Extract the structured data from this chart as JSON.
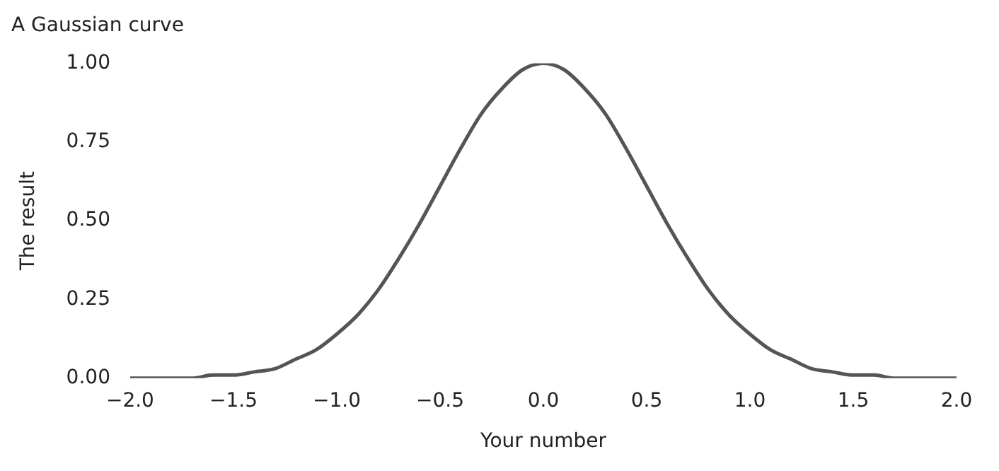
{
  "chart_data": {
    "type": "line",
    "title": "A Gaussian curve",
    "xlabel": "Your number",
    "ylabel": "The result",
    "x": [
      -2.0,
      -1.9,
      -1.8,
      -1.7,
      -1.6,
      -1.5,
      -1.4,
      -1.3,
      -1.2,
      -1.1,
      -1.0,
      -0.9,
      -0.8,
      -0.7,
      -0.6,
      -0.5,
      -0.4,
      -0.3,
      -0.2,
      -0.1,
      0.0,
      0.1,
      0.2,
      0.3,
      0.4,
      0.5,
      0.6,
      0.7,
      0.8,
      0.9,
      1.0,
      1.1,
      1.2,
      1.3,
      1.4,
      1.5,
      1.6,
      1.7,
      1.8,
      1.9,
      2.0
    ],
    "series": [
      {
        "color": "#555555",
        "values": [
          0,
          0,
          0,
          0,
          0.01,
          0.01,
          0.02,
          0.03,
          0.06,
          0.09,
          0.14,
          0.2,
          0.28,
          0.38,
          0.49,
          0.61,
          0.73,
          0.84,
          0.92,
          0.98,
          1,
          0.98,
          0.92,
          0.84,
          0.73,
          0.61,
          0.49,
          0.38,
          0.28,
          0.2,
          0.14,
          0.09,
          0.06,
          0.03,
          0.02,
          0.01,
          0.01,
          0,
          0,
          0,
          0
        ]
      }
    ],
    "xlim": [
      -2.0,
      2.0
    ],
    "xticks": [
      {
        "value": -2,
        "label": "−2.0"
      },
      {
        "value": -1.5,
        "label": "−1.5"
      },
      {
        "value": -1,
        "label": "−1.0"
      },
      {
        "value": -0.5,
        "label": "−0.5"
      },
      {
        "value": 0,
        "label": "0.0"
      },
      {
        "value": 0.5,
        "label": "0.5"
      },
      {
        "value": 1,
        "label": "1.0"
      },
      {
        "value": 1.5,
        "label": "1.5"
      },
      {
        "value": 2,
        "label": "2.0"
      }
    ],
    "ylim": [
      0,
      1.0
    ],
    "yticks": [
      {
        "value": 0,
        "label": "0.00"
      },
      {
        "value": 0.25,
        "label": "0.25"
      },
      {
        "value": 0.5,
        "label": "0.50"
      },
      {
        "value": 0.75,
        "label": "0.75"
      },
      {
        "value": 1,
        "label": "1.00"
      }
    ],
    "grid": false,
    "legend": false,
    "marker": "none",
    "line_style": "solid"
  }
}
